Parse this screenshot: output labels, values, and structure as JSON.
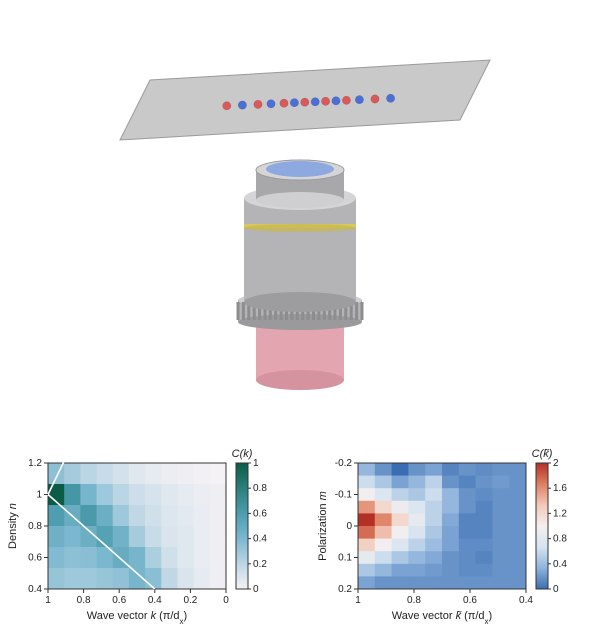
{
  "scene3d": {
    "plane_fill": "#c9c9c9",
    "plane_stroke": "#9a9a9a",
    "atom_colors": [
      "#4a6fd6",
      "#d85a5a"
    ],
    "atoms": [
      {
        "c": 1,
        "x": 0.18
      },
      {
        "c": 0,
        "x": 0.24
      },
      {
        "c": 1,
        "x": 0.3
      },
      {
        "c": 0,
        "x": 0.35
      },
      {
        "c": 1,
        "x": 0.4
      },
      {
        "c": 0,
        "x": 0.44
      },
      {
        "c": 1,
        "x": 0.48
      },
      {
        "c": 0,
        "x": 0.52
      },
      {
        "c": 1,
        "x": 0.56
      },
      {
        "c": 0,
        "x": 0.6
      },
      {
        "c": 1,
        "x": 0.64
      },
      {
        "c": 0,
        "x": 0.69
      },
      {
        "c": 1,
        "x": 0.75
      },
      {
        "c": 0,
        "x": 0.81
      }
    ],
    "lens_gray": "#b4b4b6",
    "lens_gray_dark": "#8d8d8f",
    "lens_gray_light": "#d5d5d7",
    "lens_top": "#8ea9e0",
    "lens_band": "#d8c85a",
    "barrel_pink": "#e3a6b0"
  },
  "heatmap_left": {
    "type": "heatmap",
    "xlabel_prefix": "Wave vector ",
    "xlabel_var": "k",
    "xlabel_unit": " (π/d",
    "xlabel_sub": "x",
    "xlabel_suffix": ")",
    "ylabel_prefix": "Density ",
    "ylabel_var": "n",
    "cbar_title_var": "C",
    "cbar_title_arg": "(k)",
    "nx": 11,
    "ny": 6,
    "x_ticks": [
      1.0,
      0.8,
      0.6,
      0.4,
      0.2,
      0.0
    ],
    "y_ticks": [
      1.2,
      1.0,
      0.8,
      0.6,
      0.4
    ],
    "cbar_ticks": [
      1.0,
      0.8,
      0.6,
      0.4,
      0.2,
      0.0
    ],
    "cmap": [
      "#f5f2f5",
      "#bcd6e5",
      "#7cb8cf",
      "#4d9db0",
      "#2a7f7a",
      "#0a5c47"
    ],
    "background": "#ffffff",
    "values": [
      [
        0.35,
        0.28,
        0.22,
        0.18,
        0.14,
        0.1,
        0.08,
        0.06,
        0.05,
        0.04,
        0.03
      ],
      [
        0.95,
        0.62,
        0.42,
        0.3,
        0.22,
        0.16,
        0.13,
        0.1,
        0.08,
        0.06,
        0.05
      ],
      [
        0.58,
        0.48,
        0.6,
        0.46,
        0.3,
        0.2,
        0.15,
        0.11,
        0.09,
        0.07,
        0.05
      ],
      [
        0.45,
        0.4,
        0.46,
        0.55,
        0.44,
        0.28,
        0.18,
        0.12,
        0.1,
        0.07,
        0.05
      ],
      [
        0.38,
        0.35,
        0.36,
        0.4,
        0.48,
        0.42,
        0.26,
        0.15,
        0.1,
        0.07,
        0.05
      ],
      [
        0.32,
        0.3,
        0.3,
        0.32,
        0.34,
        0.42,
        0.36,
        0.2,
        0.12,
        0.08,
        0.05
      ]
    ],
    "overlay_lines": [
      {
        "x1": 1.0,
        "y1": 1.0,
        "x2": 0.88,
        "y2": 1.28,
        "color": "#ffffff",
        "width": 1.6
      },
      {
        "x1": 1.0,
        "y1": 1.0,
        "x2": 0.4,
        "y2": 0.4,
        "color": "#ffffff",
        "width": 1.6
      }
    ]
  },
  "heatmap_right": {
    "type": "heatmap",
    "xlabel_prefix": "Wave vector ",
    "xlabel_var": "k̃",
    "xlabel_unit": " (π/d",
    "xlabel_sub": "x",
    "xlabel_suffix": ")",
    "ylabel_prefix": "Polarization ",
    "ylabel_var": "m",
    "cbar_title_var": "C",
    "cbar_title_arg": "(k̃)",
    "nx": 10,
    "ny": 10,
    "x_ticks": [
      1,
      0.8,
      0.6,
      0.4
    ],
    "y_ticks": [
      -0.2,
      -0.1,
      0,
      0.1,
      0.2
    ],
    "cbar_ticks": [
      2.0,
      1.6,
      1.2,
      0.8,
      0.4,
      0.0
    ],
    "cmap": [
      "#3b6db3",
      "#8eb3dc",
      "#d6e4f0",
      "#f4efef",
      "#f2c9b8",
      "#de7f62",
      "#b43027"
    ],
    "background": "#ffffff",
    "values": [
      [
        0.55,
        0.5,
        0.45,
        0.5,
        0.52,
        0.48,
        0.5,
        0.49,
        0.5,
        0.5
      ],
      [
        0.62,
        0.58,
        0.52,
        0.55,
        0.6,
        0.5,
        0.48,
        0.5,
        0.51,
        0.5
      ],
      [
        0.72,
        0.65,
        0.6,
        0.58,
        0.62,
        0.55,
        0.5,
        0.49,
        0.5,
        0.5
      ],
      [
        0.88,
        0.78,
        0.7,
        0.65,
        0.6,
        0.55,
        0.5,
        0.48,
        0.5,
        0.5
      ],
      [
        1.0,
        0.9,
        0.78,
        0.68,
        0.6,
        0.53,
        0.48,
        0.48,
        0.5,
        0.5
      ],
      [
        0.93,
        0.83,
        0.72,
        0.64,
        0.58,
        0.52,
        0.48,
        0.48,
        0.5,
        0.5
      ],
      [
        0.8,
        0.72,
        0.65,
        0.6,
        0.56,
        0.52,
        0.49,
        0.49,
        0.5,
        0.5
      ],
      [
        0.68,
        0.62,
        0.58,
        0.55,
        0.53,
        0.5,
        0.49,
        0.48,
        0.5,
        0.5
      ],
      [
        0.58,
        0.55,
        0.52,
        0.52,
        0.51,
        0.5,
        0.49,
        0.49,
        0.5,
        0.5
      ],
      [
        0.52,
        0.5,
        0.5,
        0.5,
        0.5,
        0.5,
        0.5,
        0.5,
        0.5,
        0.5
      ]
    ]
  }
}
